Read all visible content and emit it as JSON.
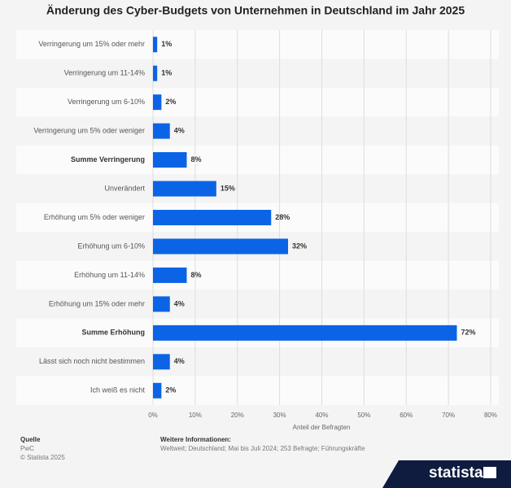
{
  "chart_data": {
    "type": "bar",
    "orientation": "horizontal",
    "title": "Änderung des Cyber-Budgets von Unternehmen in Deutschland im Jahr 2025",
    "categories": [
      "Verringerung um 15% oder mehr",
      "Verringerung um 11-14%",
      "Verringerung um 6-10%",
      "Verringerung um 5% oder weniger",
      "Summe Verringerung",
      "Unverändert",
      "Erhöhung um 5% oder weniger",
      "Erhöhung um 6-10%",
      "Erhöhung um 11-14%",
      "Erhöhung um 15% oder mehr",
      "Summe Erhöhung",
      "Lässt sich noch nicht bestimmen",
      "Ich weiß es nicht"
    ],
    "values": [
      1,
      1,
      2,
      4,
      8,
      15,
      28,
      32,
      8,
      4,
      72,
      4,
      2
    ],
    "value_labels": [
      "1%",
      "1%",
      "2%",
      "4%",
      "8%",
      "15%",
      "28%",
      "32%",
      "8%",
      "4%",
      "72%",
      "4%",
      "2%"
    ],
    "bold_category_indices": [
      4,
      10
    ],
    "color": "#0b64e6",
    "xlabel": "Anteil der Befragten",
    "xlim": [
      0,
      80
    ],
    "xticks": [
      {
        "value": 0,
        "label": "0%"
      },
      {
        "value": 10,
        "label": "10%"
      },
      {
        "value": 20,
        "label": "20%"
      },
      {
        "value": 30,
        "label": "30%"
      },
      {
        "value": 40,
        "label": "40%"
      },
      {
        "value": 50,
        "label": "50%"
      },
      {
        "value": 60,
        "label": "60%"
      },
      {
        "value": 70,
        "label": "70%"
      },
      {
        "value": 80,
        "label": "80%"
      }
    ],
    "grid": true
  },
  "footer": {
    "source_heading": "Quelle",
    "source": "PwC",
    "copyright": "© Statista 2025",
    "info_heading": "Weitere Informationen:",
    "info": "Weltweit; Deutschland; Mai bis Juli 2024; 253 Befragte; Führungskräfte",
    "logo": "statista"
  }
}
